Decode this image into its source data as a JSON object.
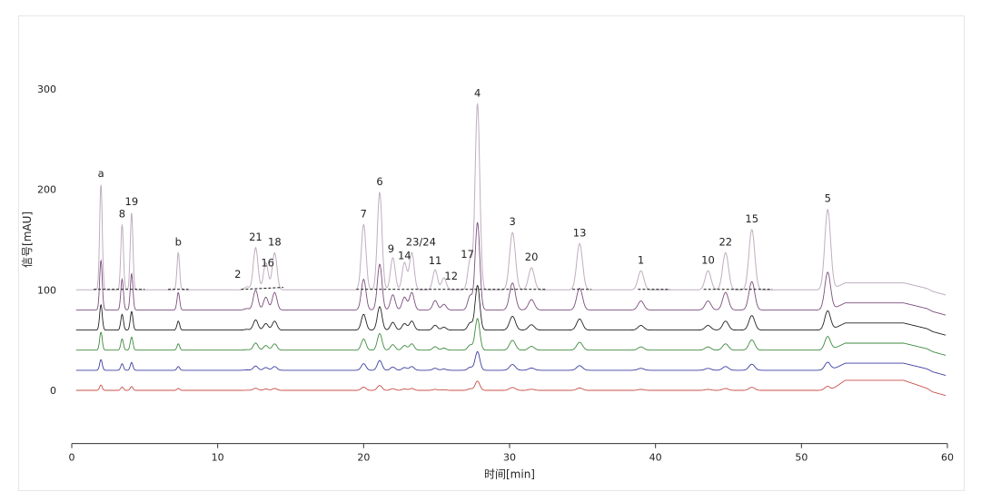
{
  "chart_data": {
    "type": "line",
    "xlabel": "时间[min]",
    "ylabel": "信号[mAU]",
    "xlim": [
      0,
      60
    ],
    "ylim": [
      -53,
      360
    ],
    "xticks": [
      0,
      10,
      20,
      30,
      40,
      50,
      60
    ],
    "yticks": [
      0,
      100,
      200,
      300
    ],
    "grid": false,
    "peaks": [
      {
        "label": "a",
        "rt": 2.0,
        "height": 105
      },
      {
        "label": "8",
        "rt": 3.45,
        "height": 65
      },
      {
        "label": "19",
        "rt": 4.1,
        "height": 77
      },
      {
        "label": "b",
        "rt": 7.3,
        "height": 37
      },
      {
        "label": "2",
        "rt": 12.0,
        "height": 3
      },
      {
        "label": "21",
        "rt": 12.6,
        "height": 42
      },
      {
        "label": "16",
        "rt": 13.3,
        "height": 27
      },
      {
        "label": "18",
        "rt": 13.9,
        "height": 37
      },
      {
        "label": "7",
        "rt": 20.0,
        "height": 65
      },
      {
        "label": "6",
        "rt": 21.1,
        "height": 97
      },
      {
        "label": "9",
        "rt": 22.0,
        "height": 32
      },
      {
        "label": "14",
        "rt": 22.8,
        "height": 27
      },
      {
        "label": "23/24",
        "rt": 23.3,
        "height": 37
      },
      {
        "label": "11",
        "rt": 24.9,
        "height": 20
      },
      {
        "label": "12",
        "rt": 25.5,
        "height": 12
      },
      {
        "label": "17",
        "rt": 27.3,
        "height": 30
      },
      {
        "label": "4",
        "rt": 27.8,
        "height": 185
      },
      {
        "label": "3",
        "rt": 30.2,
        "height": 57
      },
      {
        "label": "20",
        "rt": 31.5,
        "height": 22
      },
      {
        "label": "13",
        "rt": 34.8,
        "height": 46
      },
      {
        "label": "1",
        "rt": 39.0,
        "height": 19
      },
      {
        "label": "10",
        "rt": 43.6,
        "height": 19
      },
      {
        "label": "22",
        "rt": 44.8,
        "height": 37
      },
      {
        "label": "15",
        "rt": 46.6,
        "height": 60
      },
      {
        "label": "5",
        "rt": 51.8,
        "height": 80
      }
    ],
    "series": [
      {
        "offset": 100,
        "scale": 1.0,
        "color": "#bfaebf"
      },
      {
        "offset": 80,
        "scale": 0.47,
        "color": "#7b4d7e"
      },
      {
        "offset": 60,
        "scale": 0.24,
        "color": "#222222"
      },
      {
        "offset": 40,
        "scale": 0.17,
        "color": "#3f8a3f"
      },
      {
        "offset": 20,
        "scale": 0.1,
        "color": "#3b3fa0"
      },
      {
        "offset": 0,
        "scale": 0.05,
        "color": "#c8504a"
      }
    ]
  }
}
